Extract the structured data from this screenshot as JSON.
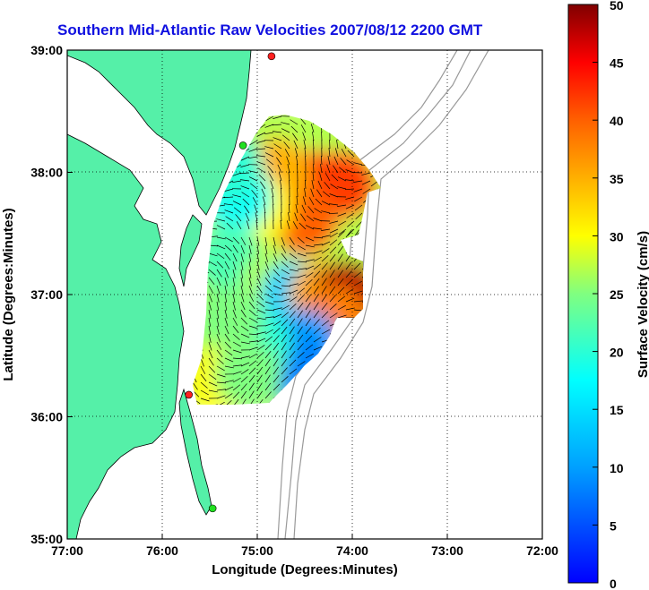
{
  "title": "Southern Mid-Atlantic Raw Velocities 2007/08/12 2200 GMT",
  "xaxis": {
    "label": "Longitude (Degrees:Minutes)",
    "ticks": [
      {
        "lon": -77,
        "label": "77:00"
      },
      {
        "lon": -76,
        "label": "76:00"
      },
      {
        "lon": -75,
        "label": "75:00"
      },
      {
        "lon": -74,
        "label": "74:00"
      },
      {
        "lon": -73,
        "label": "73:00"
      },
      {
        "lon": -72,
        "label": "72:00"
      }
    ]
  },
  "yaxis": {
    "label": "Latitude (Degrees:Minutes)",
    "ticks": [
      {
        "lat": 39,
        "label": "39:00"
      },
      {
        "lat": 38,
        "label": "38:00"
      },
      {
        "lat": 37,
        "label": "37:00"
      },
      {
        "lat": 36,
        "label": "36:00"
      },
      {
        "lat": 35,
        "label": "35:00"
      }
    ]
  },
  "extent": {
    "lon": [
      -77,
      -72
    ],
    "lat": [
      35,
      39
    ]
  },
  "colorbar": {
    "label": "Surface Velocity (cm/s)",
    "range": [
      0,
      50
    ],
    "ticks": [
      "0",
      "5",
      "10",
      "15",
      "20",
      "25",
      "30",
      "35",
      "40",
      "45",
      "50"
    ],
    "colormap": "jet"
  },
  "colors": {
    "land": "#55f0a8",
    "water": "#ffffff",
    "bathymetry": "#999999",
    "grid": "#000000",
    "title": "#1010e0",
    "site_red": "#ff2020",
    "site_green": "#20e020"
  },
  "radar_sites": [
    {
      "color": "red",
      "lon": -74.85,
      "lat": 38.95
    },
    {
      "color": "green",
      "lon": -75.15,
      "lat": 38.22
    },
    {
      "color": "red",
      "lon": -75.72,
      "lat": 36.18
    },
    {
      "color": "green",
      "lon": -75.47,
      "lat": 35.25
    }
  ],
  "chart_data": {
    "type": "heatmap",
    "title": "Southern Mid-Atlantic Raw Velocities 2007/08/12 2200 GMT",
    "xlabel": "Longitude (Degrees:Minutes)",
    "ylabel": "Latitude (Degrees:Minutes)",
    "xlim": [
      -77,
      -72
    ],
    "ylim": [
      35,
      39
    ],
    "clabel": "Surface Velocity (cm/s)",
    "clim": [
      0,
      50
    ],
    "grid": true,
    "field_points": [
      {
        "lon": -74.4,
        "lat": 37.9,
        "speed": 45
      },
      {
        "lon": -74.1,
        "lat": 37.9,
        "speed": 42
      },
      {
        "lon": -74.5,
        "lat": 37.6,
        "speed": 40
      },
      {
        "lon": -74.8,
        "lat": 38.0,
        "speed": 35
      },
      {
        "lon": -75.0,
        "lat": 37.7,
        "speed": 30
      },
      {
        "lon": -75.2,
        "lat": 37.8,
        "speed": 18
      },
      {
        "lon": -75.1,
        "lat": 37.2,
        "speed": 28
      },
      {
        "lon": -75.3,
        "lat": 37.3,
        "speed": 22
      },
      {
        "lon": -74.8,
        "lat": 37.1,
        "speed": 27
      },
      {
        "lon": -74.6,
        "lat": 37.0,
        "speed": 14
      },
      {
        "lon": -74.3,
        "lat": 37.0,
        "speed": 35
      },
      {
        "lon": -74.05,
        "lat": 37.0,
        "speed": 48
      },
      {
        "lon": -74.2,
        "lat": 36.8,
        "speed": 38
      },
      {
        "lon": -74.5,
        "lat": 36.6,
        "speed": 10
      },
      {
        "lon": -74.6,
        "lat": 36.4,
        "speed": 8
      },
      {
        "lon": -75.0,
        "lat": 36.6,
        "speed": 20
      },
      {
        "lon": -75.3,
        "lat": 36.8,
        "speed": 25
      },
      {
        "lon": -75.4,
        "lat": 36.3,
        "speed": 30
      },
      {
        "lon": -75.1,
        "lat": 36.35,
        "speed": 25
      },
      {
        "lon": -75.3,
        "lat": 38.05,
        "speed": 20
      }
    ]
  }
}
